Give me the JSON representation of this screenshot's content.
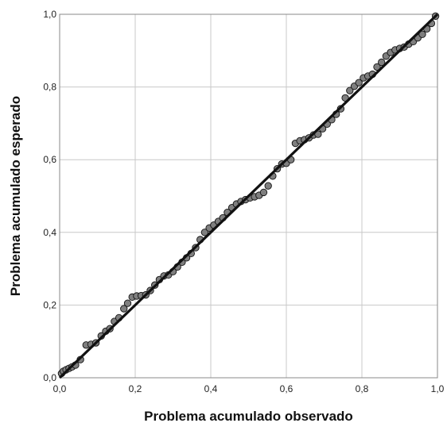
{
  "chart_data": {
    "type": "scatter",
    "title": "",
    "xlabel": "Problema acumulado observado",
    "ylabel": "Problema acumulado esperado",
    "xlim": [
      0,
      1
    ],
    "ylim": [
      0,
      1
    ],
    "x_ticks": [
      "0,0",
      "0,2",
      "0,4",
      "0,6",
      "0,8",
      "1,0"
    ],
    "y_ticks": [
      "0,0",
      "0,2",
      "0,4",
      "0,6",
      "0,8",
      "1,0"
    ],
    "grid": true,
    "legend": "none",
    "colors": {
      "points": "#7f7f7f",
      "point_stroke": "#111111",
      "reference_line": "#111111",
      "grid": "#c8c8c8",
      "frame": "#888888"
    },
    "reference_line": {
      "from": [
        0,
        0
      ],
      "to": [
        1,
        1
      ]
    },
    "points": [
      [
        0.005,
        0.012
      ],
      [
        0.01,
        0.018
      ],
      [
        0.017,
        0.022
      ],
      [
        0.025,
        0.026
      ],
      [
        0.033,
        0.03
      ],
      [
        0.042,
        0.035
      ],
      [
        0.055,
        0.05
      ],
      [
        0.07,
        0.09
      ],
      [
        0.083,
        0.092
      ],
      [
        0.096,
        0.096
      ],
      [
        0.11,
        0.115
      ],
      [
        0.122,
        0.128
      ],
      [
        0.133,
        0.135
      ],
      [
        0.145,
        0.155
      ],
      [
        0.157,
        0.165
      ],
      [
        0.17,
        0.19
      ],
      [
        0.18,
        0.205
      ],
      [
        0.192,
        0.222
      ],
      [
        0.204,
        0.225
      ],
      [
        0.216,
        0.226
      ],
      [
        0.228,
        0.228
      ],
      [
        0.24,
        0.24
      ],
      [
        0.252,
        0.255
      ],
      [
        0.264,
        0.27
      ],
      [
        0.276,
        0.28
      ],
      [
        0.288,
        0.283
      ],
      [
        0.3,
        0.292
      ],
      [
        0.312,
        0.305
      ],
      [
        0.324,
        0.318
      ],
      [
        0.336,
        0.33
      ],
      [
        0.348,
        0.342
      ],
      [
        0.36,
        0.358
      ],
      [
        0.372,
        0.38
      ],
      [
        0.384,
        0.4
      ],
      [
        0.396,
        0.412
      ],
      [
        0.408,
        0.42
      ],
      [
        0.42,
        0.43
      ],
      [
        0.432,
        0.44
      ],
      [
        0.444,
        0.455
      ],
      [
        0.456,
        0.468
      ],
      [
        0.468,
        0.478
      ],
      [
        0.48,
        0.485
      ],
      [
        0.492,
        0.49
      ],
      [
        0.504,
        0.495
      ],
      [
        0.516,
        0.498
      ],
      [
        0.528,
        0.502
      ],
      [
        0.54,
        0.51
      ],
      [
        0.552,
        0.528
      ],
      [
        0.564,
        0.555
      ],
      [
        0.576,
        0.575
      ],
      [
        0.588,
        0.588
      ],
      [
        0.6,
        0.59
      ],
      [
        0.612,
        0.6
      ],
      [
        0.624,
        0.645
      ],
      [
        0.636,
        0.652
      ],
      [
        0.648,
        0.655
      ],
      [
        0.66,
        0.66
      ],
      [
        0.672,
        0.668
      ],
      [
        0.684,
        0.67
      ],
      [
        0.696,
        0.685
      ],
      [
        0.708,
        0.698
      ],
      [
        0.72,
        0.71
      ],
      [
        0.732,
        0.725
      ],
      [
        0.744,
        0.74
      ],
      [
        0.756,
        0.77
      ],
      [
        0.768,
        0.79
      ],
      [
        0.78,
        0.802
      ],
      [
        0.792,
        0.812
      ],
      [
        0.804,
        0.825
      ],
      [
        0.816,
        0.83
      ],
      [
        0.828,
        0.835
      ],
      [
        0.84,
        0.855
      ],
      [
        0.852,
        0.868
      ],
      [
        0.864,
        0.885
      ],
      [
        0.876,
        0.895
      ],
      [
        0.888,
        0.902
      ],
      [
        0.9,
        0.906
      ],
      [
        0.912,
        0.91
      ],
      [
        0.924,
        0.918
      ],
      [
        0.936,
        0.925
      ],
      [
        0.948,
        0.935
      ],
      [
        0.96,
        0.945
      ],
      [
        0.972,
        0.96
      ],
      [
        0.984,
        0.975
      ],
      [
        0.995,
        0.995
      ]
    ]
  }
}
